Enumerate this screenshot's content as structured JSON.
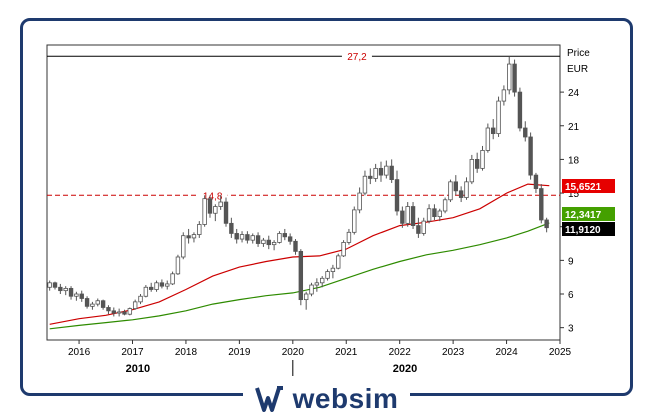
{
  "brand": {
    "name": "websim",
    "accent": "#1e3a6e"
  },
  "chart_data": {
    "type": "candlestick",
    "y_axis_title": "Price",
    "y_axis_unit": "EUR",
    "x_range": [
      2015.4,
      2025.0
    ],
    "y_range": [
      1.9,
      28.2
    ],
    "y_ticks": [
      3,
      6,
      9,
      12,
      15,
      18,
      21,
      24
    ],
    "x_ticks": [
      "2016",
      "2017",
      "2018",
      "2019",
      "2020",
      "2021",
      "2022",
      "2023",
      "2024",
      "2025"
    ],
    "decade_labels": [
      "2010",
      "2020"
    ],
    "reference_lines": [
      {
        "value": 27.2,
        "label": "27,2",
        "style": "solid",
        "color": "#000000"
      },
      {
        "value": 14.8,
        "label": "14,8",
        "style": "dashed",
        "color": "#cc0000"
      }
    ],
    "value_badges": [
      {
        "label": "15,6521",
        "value": 15.6521,
        "color": "#e60000",
        "text_color": "#ffffff"
      },
      {
        "label": "12,3417",
        "value": 12.3417,
        "color": "#44a000",
        "text_color": "#ffffff"
      },
      {
        "label": "11,9120",
        "value": 11.912,
        "color": "#000000",
        "text_color": "#ffffff"
      }
    ],
    "colors": {
      "candle": "#555555",
      "ma_short": "#cc0000",
      "ma_long": "#2e8b00"
    },
    "candles": [
      [
        2015.45,
        6.6,
        7.2,
        6.3,
        7.0
      ],
      [
        2015.55,
        7.0,
        7.1,
        6.4,
        6.6
      ],
      [
        2015.65,
        6.6,
        6.9,
        6.0,
        6.3
      ],
      [
        2015.75,
        6.3,
        6.7,
        5.9,
        6.5
      ],
      [
        2015.85,
        6.5,
        6.7,
        5.5,
        5.8
      ],
      [
        2015.95,
        5.8,
        6.2,
        5.4,
        6.0
      ],
      [
        2016.05,
        6.0,
        6.3,
        5.3,
        5.6
      ],
      [
        2016.15,
        5.6,
        5.8,
        4.7,
        4.9
      ],
      [
        2016.25,
        4.9,
        5.3,
        4.6,
        5.1
      ],
      [
        2016.35,
        5.1,
        5.6,
        4.9,
        5.4
      ],
      [
        2016.45,
        5.4,
        5.5,
        4.6,
        4.8
      ],
      [
        2016.55,
        4.8,
        5.0,
        4.2,
        4.5
      ],
      [
        2016.65,
        4.5,
        4.8,
        4.0,
        4.3
      ],
      [
        2016.75,
        4.3,
        4.7,
        4.0,
        4.4
      ],
      [
        2016.85,
        4.4,
        4.6,
        4.1,
        4.2
      ],
      [
        2016.95,
        4.2,
        4.8,
        4.1,
        4.7
      ],
      [
        2017.05,
        4.7,
        5.5,
        4.6,
        5.3
      ],
      [
        2017.15,
        5.3,
        6.0,
        5.1,
        5.8
      ],
      [
        2017.25,
        5.8,
        6.8,
        5.7,
        6.6
      ],
      [
        2017.35,
        6.6,
        7.0,
        6.2,
        6.4
      ],
      [
        2017.45,
        6.4,
        7.2,
        6.2,
        7.0
      ],
      [
        2017.55,
        7.0,
        7.3,
        6.5,
        6.7
      ],
      [
        2017.65,
        6.7,
        7.2,
        6.4,
        6.9
      ],
      [
        2017.75,
        6.9,
        8.0,
        6.8,
        7.8
      ],
      [
        2017.85,
        7.8,
        9.5,
        7.7,
        9.3
      ],
      [
        2017.95,
        9.3,
        11.5,
        9.1,
        11.2
      ],
      [
        2018.05,
        11.2,
        11.8,
        10.5,
        11.0
      ],
      [
        2018.15,
        11.0,
        11.5,
        10.6,
        11.3
      ],
      [
        2018.25,
        11.3,
        12.5,
        11.0,
        12.2
      ],
      [
        2018.35,
        12.2,
        14.8,
        12.0,
        14.5
      ],
      [
        2018.45,
        14.5,
        14.8,
        12.8,
        13.2
      ],
      [
        2018.55,
        13.2,
        14.0,
        12.5,
        13.8
      ],
      [
        2018.65,
        13.8,
        14.8,
        13.5,
        14.2
      ],
      [
        2018.75,
        14.2,
        14.6,
        12.0,
        12.3
      ],
      [
        2018.85,
        12.3,
        12.8,
        11.0,
        11.4
      ],
      [
        2018.95,
        11.4,
        11.8,
        10.5,
        10.9
      ],
      [
        2019.05,
        10.9,
        11.6,
        10.6,
        11.3
      ],
      [
        2019.15,
        11.3,
        11.6,
        10.5,
        10.8
      ],
      [
        2019.25,
        10.8,
        11.4,
        10.5,
        11.2
      ],
      [
        2019.35,
        11.2,
        11.5,
        10.2,
        10.5
      ],
      [
        2019.45,
        10.5,
        11.0,
        10.2,
        10.8
      ],
      [
        2019.55,
        10.8,
        11.2,
        10.0,
        10.4
      ],
      [
        2019.65,
        10.4,
        10.8,
        9.9,
        10.6
      ],
      [
        2019.75,
        10.6,
        11.6,
        10.5,
        11.4
      ],
      [
        2019.85,
        11.4,
        11.8,
        10.8,
        11.1
      ],
      [
        2019.95,
        11.1,
        11.4,
        10.4,
        10.7
      ],
      [
        2020.05,
        10.7,
        10.9,
        9.5,
        9.8
      ],
      [
        2020.15,
        9.8,
        10.0,
        5.0,
        5.5
      ],
      [
        2020.25,
        5.5,
        6.2,
        4.6,
        6.0
      ],
      [
        2020.35,
        6.0,
        7.0,
        5.8,
        6.8
      ],
      [
        2020.45,
        6.8,
        7.4,
        6.2,
        7.0
      ],
      [
        2020.55,
        7.0,
        7.6,
        6.6,
        7.4
      ],
      [
        2020.65,
        7.4,
        8.2,
        7.2,
        8.0
      ],
      [
        2020.75,
        8.0,
        8.6,
        7.4,
        8.3
      ],
      [
        2020.85,
        8.3,
        9.6,
        8.2,
        9.4
      ],
      [
        2020.95,
        9.4,
        10.8,
        9.3,
        10.6
      ],
      [
        2021.05,
        10.6,
        11.8,
        10.4,
        11.5
      ],
      [
        2021.15,
        11.5,
        13.8,
        11.3,
        13.5
      ],
      [
        2021.25,
        13.5,
        15.5,
        13.2,
        15.0
      ],
      [
        2021.35,
        15.0,
        17.0,
        14.8,
        16.5
      ],
      [
        2021.45,
        16.5,
        17.2,
        15.8,
        16.3
      ],
      [
        2021.55,
        16.3,
        17.6,
        16.0,
        17.2
      ],
      [
        2021.65,
        17.2,
        17.8,
        16.0,
        16.6
      ],
      [
        2021.75,
        16.6,
        17.9,
        16.3,
        17.4
      ],
      [
        2021.85,
        17.4,
        18.0,
        15.9,
        16.2
      ],
      [
        2021.95,
        16.2,
        17.0,
        13.0,
        13.4
      ],
      [
        2022.05,
        13.4,
        13.8,
        11.9,
        12.3
      ],
      [
        2022.15,
        12.3,
        14.2,
        12.0,
        13.8
      ],
      [
        2022.25,
        13.8,
        14.2,
        11.8,
        12.1
      ],
      [
        2022.35,
        12.1,
        12.8,
        11.0,
        11.4
      ],
      [
        2022.45,
        11.4,
        12.8,
        11.2,
        12.5
      ],
      [
        2022.55,
        12.5,
        14.0,
        12.3,
        13.6
      ],
      [
        2022.65,
        13.6,
        14.0,
        12.6,
        12.9
      ],
      [
        2022.75,
        12.9,
        13.6,
        12.5,
        13.4
      ],
      [
        2022.85,
        13.4,
        14.6,
        13.2,
        14.4
      ],
      [
        2022.95,
        14.4,
        16.2,
        14.2,
        16.0
      ],
      [
        2023.05,
        16.0,
        16.6,
        14.8,
        15.2
      ],
      [
        2023.15,
        15.2,
        15.6,
        14.2,
        14.6
      ],
      [
        2023.25,
        14.6,
        16.4,
        14.4,
        16.0
      ],
      [
        2023.35,
        16.0,
        18.4,
        15.8,
        18.0
      ],
      [
        2023.45,
        18.0,
        18.6,
        16.8,
        17.2
      ],
      [
        2023.55,
        17.2,
        19.2,
        17.0,
        18.8
      ],
      [
        2023.65,
        18.8,
        21.2,
        18.6,
        20.8
      ],
      [
        2023.75,
        20.8,
        21.6,
        19.8,
        20.3
      ],
      [
        2023.85,
        20.3,
        23.6,
        20.0,
        23.2
      ],
      [
        2023.95,
        23.2,
        24.6,
        22.8,
        24.2
      ],
      [
        2024.05,
        24.2,
        27.2,
        23.8,
        26.5
      ],
      [
        2024.15,
        26.5,
        26.9,
        23.6,
        24.0
      ],
      [
        2024.25,
        24.0,
        24.4,
        20.5,
        20.8
      ],
      [
        2024.35,
        20.8,
        21.4,
        19.6,
        20.0
      ],
      [
        2024.45,
        20.0,
        20.4,
        16.2,
        16.6
      ],
      [
        2024.55,
        16.6,
        16.8,
        15.0,
        15.4
      ],
      [
        2024.65,
        15.4,
        15.8,
        12.3,
        12.6
      ],
      [
        2024.75,
        12.6,
        12.8,
        11.5,
        11.912
      ]
    ],
    "ma_short": [
      [
        2015.45,
        3.3
      ],
      [
        2016.0,
        3.8
      ],
      [
        2016.5,
        4.1
      ],
      [
        2017.0,
        4.6
      ],
      [
        2017.5,
        5.3
      ],
      [
        2018.0,
        6.4
      ],
      [
        2018.5,
        7.6
      ],
      [
        2019.0,
        8.4
      ],
      [
        2019.5,
        8.9
      ],
      [
        2020.0,
        9.3
      ],
      [
        2020.5,
        9.4
      ],
      [
        2021.0,
        10.0
      ],
      [
        2021.5,
        11.2
      ],
      [
        2022.0,
        12.1
      ],
      [
        2022.5,
        12.4
      ],
      [
        2023.0,
        12.8
      ],
      [
        2023.5,
        13.6
      ],
      [
        2024.0,
        15.0
      ],
      [
        2024.4,
        15.8
      ],
      [
        2024.8,
        15.6521
      ]
    ],
    "ma_long": [
      [
        2015.45,
        2.9
      ],
      [
        2016.0,
        3.2
      ],
      [
        2016.5,
        3.45
      ],
      [
        2017.0,
        3.7
      ],
      [
        2017.5,
        4.05
      ],
      [
        2018.0,
        4.5
      ],
      [
        2018.5,
        5.1
      ],
      [
        2019.0,
        5.5
      ],
      [
        2019.5,
        5.85
      ],
      [
        2020.0,
        6.1
      ],
      [
        2020.5,
        6.6
      ],
      [
        2021.0,
        7.4
      ],
      [
        2021.5,
        8.2
      ],
      [
        2022.0,
        8.9
      ],
      [
        2022.5,
        9.5
      ],
      [
        2023.0,
        9.9
      ],
      [
        2023.5,
        10.4
      ],
      [
        2024.0,
        11.0
      ],
      [
        2024.4,
        11.6
      ],
      [
        2024.8,
        12.3417
      ]
    ]
  }
}
